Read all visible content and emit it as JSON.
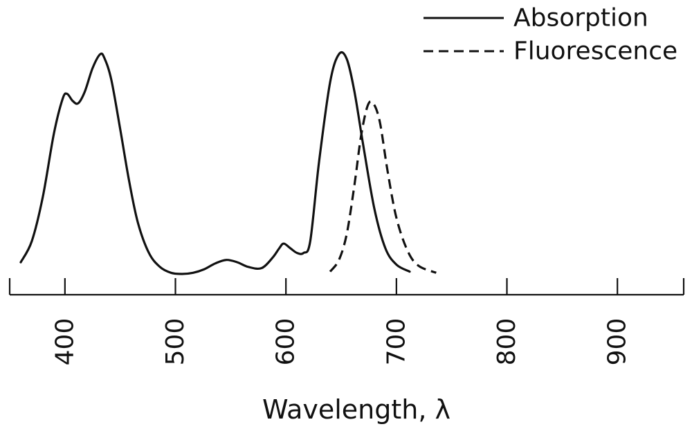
{
  "chart_data": {
    "type": "line",
    "title": "",
    "xlabel": "Wavelength, λ",
    "ylabel": "",
    "xlim": [
      350,
      960
    ],
    "ylim": [
      0,
      1.0
    ],
    "x_ticks": [
      400,
      500,
      600,
      700,
      800,
      900
    ],
    "x_tick_labels": [
      "400",
      "500",
      "600",
      "700",
      "800",
      "900"
    ],
    "y_axis_visible": false,
    "grid": false,
    "legend_position": "top-right",
    "series": [
      {
        "name": "Absorption",
        "line_style": "solid",
        "color": "#111111",
        "points": [
          [
            360,
            0.05
          ],
          [
            370,
            0.14
          ],
          [
            380,
            0.33
          ],
          [
            390,
            0.6
          ],
          [
            398,
            0.75
          ],
          [
            402,
            0.77
          ],
          [
            407,
            0.74
          ],
          [
            412,
            0.73
          ],
          [
            418,
            0.78
          ],
          [
            425,
            0.88
          ],
          [
            432,
            0.94
          ],
          [
            436,
            0.92
          ],
          [
            442,
            0.83
          ],
          [
            450,
            0.62
          ],
          [
            458,
            0.4
          ],
          [
            466,
            0.22
          ],
          [
            476,
            0.09
          ],
          [
            486,
            0.03
          ],
          [
            496,
            0.005
          ],
          [
            506,
            0.0
          ],
          [
            516,
            0.005
          ],
          [
            526,
            0.02
          ],
          [
            536,
            0.045
          ],
          [
            546,
            0.06
          ],
          [
            556,
            0.05
          ],
          [
            566,
            0.03
          ],
          [
            578,
            0.025
          ],
          [
            588,
            0.07
          ],
          [
            594,
            0.11
          ],
          [
            598,
            0.13
          ],
          [
            604,
            0.11
          ],
          [
            610,
            0.09
          ],
          [
            616,
            0.09
          ],
          [
            622,
            0.14
          ],
          [
            630,
            0.48
          ],
          [
            640,
            0.82
          ],
          [
            648,
            0.94
          ],
          [
            655,
            0.92
          ],
          [
            662,
            0.78
          ],
          [
            670,
            0.55
          ],
          [
            680,
            0.28
          ],
          [
            690,
            0.11
          ],
          [
            700,
            0.04
          ],
          [
            712,
            0.01
          ]
        ]
      },
      {
        "name": "Fluorescence",
        "line_style": "dashed",
        "color": "#111111",
        "points": [
          [
            640,
            0.01
          ],
          [
            648,
            0.06
          ],
          [
            655,
            0.17
          ],
          [
            662,
            0.38
          ],
          [
            668,
            0.59
          ],
          [
            674,
            0.72
          ],
          [
            679,
            0.73
          ],
          [
            685,
            0.65
          ],
          [
            692,
            0.44
          ],
          [
            700,
            0.24
          ],
          [
            710,
            0.1
          ],
          [
            720,
            0.035
          ],
          [
            736,
            0.005
          ]
        ]
      }
    ]
  }
}
